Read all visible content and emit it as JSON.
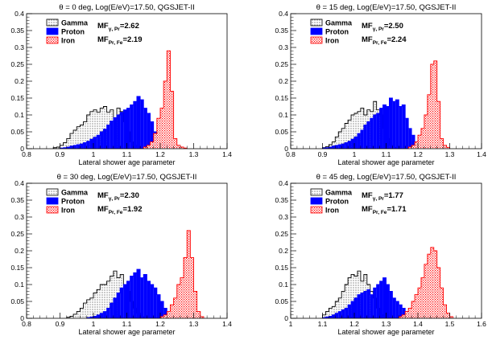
{
  "chart_data": [
    {
      "type": "histogram",
      "title": "θ = 0 deg, Log(E/eV)=17.50, QGSJET-II",
      "xlabel": "Lateral shower age parameter",
      "ylabel": "",
      "xlim": [
        0.8,
        1.4
      ],
      "ylim": [
        0,
        0.4
      ],
      "xticks": [
        "0.8",
        "0.9",
        "1",
        "1.1",
        "1.2",
        "1.3",
        "1.4"
      ],
      "yticks": [
        "0",
        "0.05",
        "0.1",
        "0.15",
        "0.2",
        "0.25",
        "0.3",
        "0.35",
        "0.4"
      ],
      "bin_width": 0.01,
      "legend": [
        "Gamma",
        "Proton",
        "Iron"
      ],
      "mf_labels": [
        {
          "main": "MF",
          "sub": "γ, Pr",
          "value": "=2.62"
        },
        {
          "main": "MF",
          "sub": "Pr, Fe",
          "value": "=2.19"
        }
      ],
      "series": [
        {
          "name": "Gamma",
          "x_start": 0.88,
          "values": [
            0.003,
            0.005,
            0.01,
            0.018,
            0.03,
            0.045,
            0.055,
            0.065,
            0.07,
            0.08,
            0.1,
            0.11,
            0.115,
            0.108,
            0.12,
            0.125,
            0.108,
            0.115,
            0.09,
            0.12,
            0.11,
            0.08,
            0.05,
            0.02,
            0.01,
            0.005
          ]
        },
        {
          "name": "Proton",
          "x_start": 0.9,
          "values": [
            0.002,
            0.003,
            0.005,
            0.008,
            0.01,
            0.012,
            0.014,
            0.018,
            0.022,
            0.028,
            0.034,
            0.04,
            0.05,
            0.058,
            0.07,
            0.082,
            0.092,
            0.1,
            0.108,
            0.115,
            0.12,
            0.13,
            0.14,
            0.155,
            0.145,
            0.12,
            0.105,
            0.08,
            0.05,
            0.03,
            0.02,
            0.012,
            0.008,
            0.005,
            0.003,
            0.002
          ]
        },
        {
          "name": "Iron",
          "x_start": 1.15,
          "values": [
            0.005,
            0.01,
            0.02,
            0.045,
            0.09,
            0.12,
            0.2,
            0.29,
            0.17,
            0.03,
            0.01,
            0.005,
            0.002
          ]
        }
      ]
    },
    {
      "type": "histogram",
      "title": "θ = 15 deg, Log(E/eV)=17.50, QGSJET-II",
      "xlabel": "Lateral shower age parameter",
      "ylabel": "",
      "xlim": [
        0.8,
        1.4
      ],
      "ylim": [
        0,
        0.4
      ],
      "xticks": [
        "0.8",
        "0.9",
        "1",
        "1.1",
        "1.2",
        "1.3",
        "1.4"
      ],
      "yticks": [
        "0",
        "0.05",
        "0.1",
        "0.15",
        "0.2",
        "0.25",
        "0.3",
        "0.35",
        "0.4"
      ],
      "bin_width": 0.01,
      "legend": [
        "Gamma",
        "Proton",
        "Iron"
      ],
      "mf_labels": [
        {
          "main": "MF",
          "sub": "γ, Pr",
          "value": "=2.50"
        },
        {
          "main": "MF",
          "sub": "Pr, Fe",
          "value": "=2.24"
        }
      ],
      "series": [
        {
          "name": "Gamma",
          "x_start": 0.9,
          "values": [
            0.003,
            0.006,
            0.012,
            0.02,
            0.035,
            0.05,
            0.06,
            0.075,
            0.085,
            0.1,
            0.105,
            0.11,
            0.12,
            0.1,
            0.115,
            0.11,
            0.14,
            0.115,
            0.1,
            0.06,
            0.03,
            0.01,
            0.004
          ]
        },
        {
          "name": "Proton",
          "x_start": 0.9,
          "values": [
            0.002,
            0.003,
            0.005,
            0.008,
            0.01,
            0.012,
            0.014,
            0.018,
            0.022,
            0.028,
            0.035,
            0.045,
            0.055,
            0.07,
            0.08,
            0.09,
            0.1,
            0.105,
            0.12,
            0.13,
            0.125,
            0.15,
            0.14,
            0.145,
            0.125,
            0.13,
            0.09,
            0.06,
            0.04,
            0.02,
            0.01,
            0.005,
            0.003
          ]
        },
        {
          "name": "Iron",
          "x_start": 1.17,
          "values": [
            0.005,
            0.01,
            0.02,
            0.04,
            0.06,
            0.1,
            0.16,
            0.25,
            0.26,
            0.14,
            0.03,
            0.01,
            0.004
          ]
        }
      ]
    },
    {
      "type": "histogram",
      "title": "θ = 30 deg, Log(E/eV)=17.50, QGSJET-II",
      "xlabel": "Lateral shower age parameter",
      "ylabel": "",
      "xlim": [
        0.8,
        1.4
      ],
      "ylim": [
        0,
        0.4
      ],
      "xticks": [
        "0.8",
        "0.9",
        "1",
        "1.1",
        "1.2",
        "1.3",
        "1.4"
      ],
      "yticks": [
        "0",
        "0.05",
        "0.1",
        "0.15",
        "0.2",
        "0.25",
        "0.3",
        "0.35",
        "0.4"
      ],
      "bin_width": 0.01,
      "legend": [
        "Gamma",
        "Proton",
        "Iron"
      ],
      "mf_labels": [
        {
          "main": "MF",
          "sub": "γ, Pr",
          "value": "=2.30"
        },
        {
          "main": "MF",
          "sub": "Pr, Fe",
          "value": "=1.92"
        }
      ],
      "series": [
        {
          "name": "Gamma",
          "x_start": 0.92,
          "values": [
            0.003,
            0.006,
            0.012,
            0.02,
            0.03,
            0.045,
            0.055,
            0.06,
            0.075,
            0.085,
            0.1,
            0.1,
            0.11,
            0.125,
            0.14,
            0.12,
            0.13,
            0.1,
            0.08,
            0.05,
            0.03,
            0.015,
            0.005
          ]
        },
        {
          "name": "Proton",
          "x_start": 0.98,
          "values": [
            0.002,
            0.004,
            0.006,
            0.01,
            0.015,
            0.02,
            0.03,
            0.045,
            0.06,
            0.075,
            0.09,
            0.1,
            0.11,
            0.125,
            0.135,
            0.145,
            0.12,
            0.13,
            0.11,
            0.1,
            0.09,
            0.07,
            0.05,
            0.03,
            0.015,
            0.008,
            0.004
          ]
        },
        {
          "name": "Iron",
          "x_start": 1.2,
          "values": [
            0.005,
            0.01,
            0.02,
            0.04,
            0.06,
            0.1,
            0.12,
            0.18,
            0.26,
            0.18,
            0.08,
            0.02,
            0.005
          ]
        }
      ]
    },
    {
      "type": "histogram",
      "title": "θ = 45 deg, Log(E/eV)=17.50, QGSJET-II",
      "xlabel": "Lateral shower age parameter",
      "ylabel": "",
      "xlim": [
        1.0,
        1.6
      ],
      "ylim": [
        0,
        0.4
      ],
      "xticks": [
        "1",
        "1.1",
        "1.2",
        "1.3",
        "1.4",
        "1.5",
        "1.6"
      ],
      "yticks": [
        "0",
        "0.05",
        "0.1",
        "0.15",
        "0.2",
        "0.25",
        "0.3",
        "0.35",
        "0.4"
      ],
      "bin_width": 0.01,
      "legend": [
        "Gamma",
        "Proton",
        "Iron"
      ],
      "mf_labels": [
        {
          "main": "MF",
          "sub": "γ, Pr",
          "value": "=1.77"
        },
        {
          "main": "MF",
          "sub": "Pr, Fe",
          "value": "=1.71"
        }
      ],
      "series": [
        {
          "name": "Gamma",
          "x_start": 1.1,
          "values": [
            0.01,
            0.02,
            0.03,
            0.035,
            0.05,
            0.06,
            0.08,
            0.1,
            0.12,
            0.13,
            0.125,
            0.14,
            0.11,
            0.13,
            0.1,
            0.08,
            0.06,
            0.03,
            0.01,
            0.005
          ]
        },
        {
          "name": "Proton",
          "x_start": 1.1,
          "values": [
            0.002,
            0.004,
            0.006,
            0.01,
            0.015,
            0.02,
            0.025,
            0.03,
            0.04,
            0.05,
            0.06,
            0.07,
            0.075,
            0.08,
            0.085,
            0.07,
            0.09,
            0.1,
            0.11,
            0.12,
            0.1,
            0.08,
            0.06,
            0.05,
            0.04,
            0.03,
            0.02,
            0.015,
            0.01,
            0.005
          ]
        },
        {
          "name": "Iron",
          "x_start": 1.34,
          "values": [
            0.005,
            0.01,
            0.02,
            0.03,
            0.05,
            0.07,
            0.09,
            0.12,
            0.16,
            0.19,
            0.21,
            0.2,
            0.15,
            0.09,
            0.04,
            0.015,
            0.005
          ]
        }
      ]
    }
  ],
  "colors": {
    "gamma_edge": "#000000",
    "proton_fill": "#0000ff",
    "iron_edge": "#ff0000"
  }
}
